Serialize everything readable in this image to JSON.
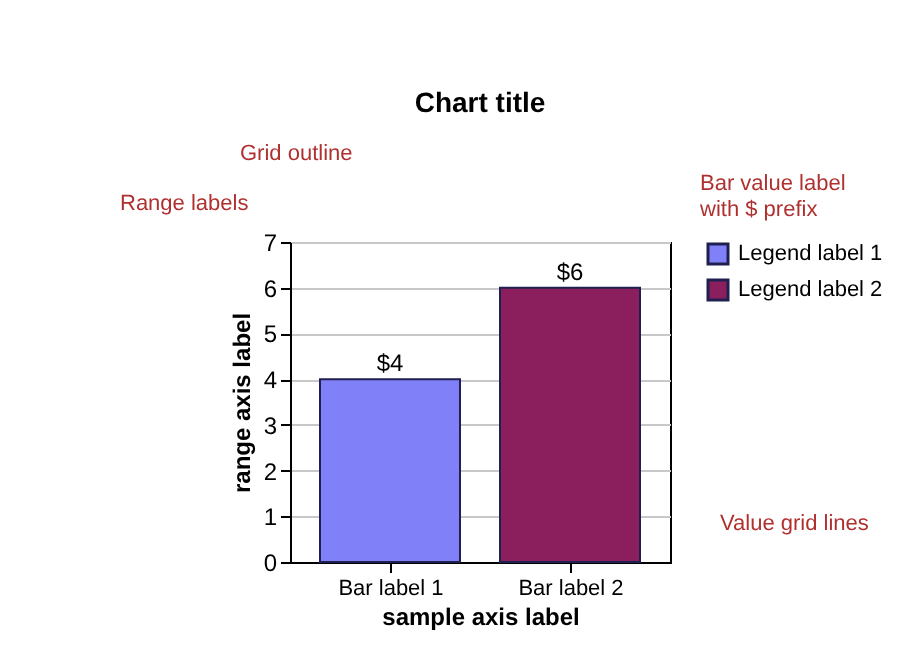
{
  "chart_data": {
    "type": "bar",
    "title": "Chart title",
    "xlabel": "sample axis label",
    "ylabel": "range axis label",
    "categories": [
      "Bar label 1",
      "Bar label 2"
    ],
    "series": [
      {
        "name": "Legend label 1",
        "color": "#8080f8",
        "values": [
          4,
          null
        ],
        "value_labels": [
          "$4",
          null
        ]
      },
      {
        "name": "Legend label 2",
        "color": "#8b1f5e",
        "values": [
          null,
          6
        ],
        "value_labels": [
          null,
          "$6"
        ]
      }
    ],
    "ylim": [
      0,
      7
    ],
    "yticks": [
      0,
      1,
      2,
      3,
      4,
      5,
      6,
      7
    ],
    "grid": "y",
    "legend": "right",
    "annotations": [
      "Grid outline",
      "Range labels",
      "Bar value label with $ prefix",
      "Value grid lines"
    ]
  }
}
